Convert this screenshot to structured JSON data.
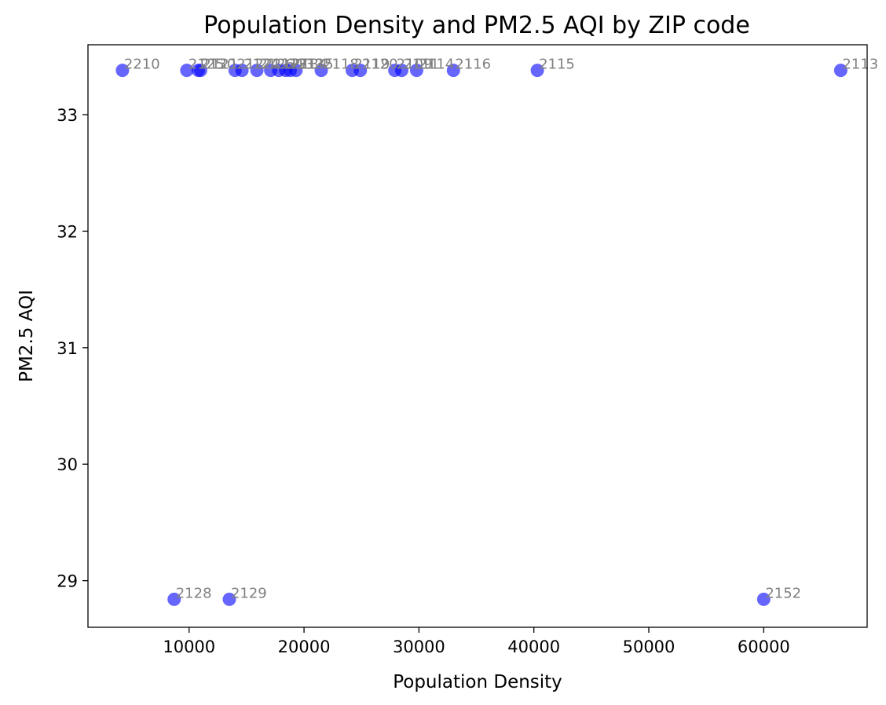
{
  "chart_data": {
    "type": "scatter",
    "title": "Population Density and PM2.5 AQI by ZIP code",
    "xlabel": "Population Density",
    "ylabel": "PM2.5 AQI",
    "xlim": [
      1200,
      69000
    ],
    "ylim": [
      28.6,
      33.6
    ],
    "xticks": [
      10000,
      20000,
      30000,
      40000,
      50000,
      60000
    ],
    "yticks": [
      29,
      30,
      31,
      32,
      33
    ],
    "grid": false,
    "point_color": "#0000ff",
    "point_opacity": 0.6,
    "label_color": "#808080",
    "points": [
      {
        "label": "2210",
        "x": 4200,
        "y": 33.38
      },
      {
        "label": "2125",
        "x": 9800,
        "y": 33.38
      },
      {
        "label": "2130",
        "x": 10800,
        "y": 33.38
      },
      {
        "label": "2121",
        "x": 11000,
        "y": 33.38
      },
      {
        "label": "2122",
        "x": 14000,
        "y": 33.38
      },
      {
        "label": "2124",
        "x": 14600,
        "y": 33.38
      },
      {
        "label": "2126",
        "x": 15900,
        "y": 33.38
      },
      {
        "label": "2127",
        "x": 17100,
        "y": 33.38
      },
      {
        "label": "2131",
        "x": 17800,
        "y": 33.38
      },
      {
        "label": "2132",
        "x": 18400,
        "y": 33.38
      },
      {
        "label": "2134",
        "x": 18800,
        "y": 33.38
      },
      {
        "label": "2135",
        "x": 19300,
        "y": 33.38
      },
      {
        "label": "2118",
        "x": 21500,
        "y": 33.38
      },
      {
        "label": "2119",
        "x": 24200,
        "y": 33.38
      },
      {
        "label": "2120",
        "x": 24900,
        "y": 33.38
      },
      {
        "label": "2109",
        "x": 27900,
        "y": 33.38
      },
      {
        "label": "2111",
        "x": 28500,
        "y": 33.38
      },
      {
        "label": "2114",
        "x": 29800,
        "y": 33.38
      },
      {
        "label": "2116",
        "x": 33000,
        "y": 33.38
      },
      {
        "label": "2115",
        "x": 40300,
        "y": 33.38
      },
      {
        "label": "2113",
        "x": 66700,
        "y": 33.38
      },
      {
        "label": "2128",
        "x": 8700,
        "y": 28.84
      },
      {
        "label": "2129",
        "x": 13500,
        "y": 28.84
      },
      {
        "label": "2152",
        "x": 60000,
        "y": 28.84
      }
    ]
  }
}
